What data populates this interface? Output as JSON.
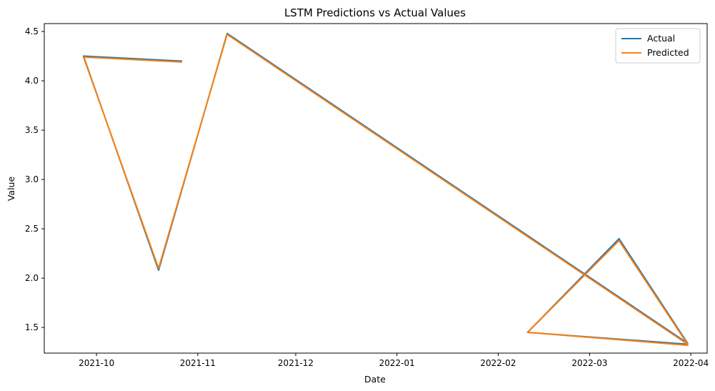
{
  "chart_data": {
    "type": "line",
    "title": "LSTM Predictions vs Actual Values",
    "xlabel": "Date",
    "ylabel": "Value",
    "x_type": "date",
    "xlim": [
      "2021-09-15",
      "2022-04-06"
    ],
    "ylim": [
      1.24,
      4.58
    ],
    "x_ticks": [
      {
        "value": "2021-10-01",
        "label": "2021-10"
      },
      {
        "value": "2021-11-01",
        "label": "2021-11"
      },
      {
        "value": "2021-12-01",
        "label": "2021-12"
      },
      {
        "value": "2022-01-01",
        "label": "2022-01"
      },
      {
        "value": "2022-02-01",
        "label": "2022-02"
      },
      {
        "value": "2022-03-01",
        "label": "2022-03"
      },
      {
        "value": "2022-04-01",
        "label": "2022-04"
      }
    ],
    "y_ticks": [
      {
        "value": 1.5,
        "label": "1.5"
      },
      {
        "value": 2.0,
        "label": "2.0"
      },
      {
        "value": 2.5,
        "label": "2.5"
      },
      {
        "value": 3.0,
        "label": "3.0"
      },
      {
        "value": 3.5,
        "label": "3.5"
      },
      {
        "value": 4.0,
        "label": "4.0"
      },
      {
        "value": 4.5,
        "label": "4.5"
      }
    ],
    "grid": false,
    "legend": "top-right",
    "series": [
      {
        "name": "Actual",
        "color": "#1f77b4",
        "points": [
          {
            "x": "2021-10-27",
            "y": 4.2
          },
          {
            "x": "2021-09-27",
            "y": 4.25
          },
          {
            "x": "2021-10-20",
            "y": 2.08
          },
          {
            "x": "2021-11-10",
            "y": 4.48
          },
          {
            "x": "2022-03-31",
            "y": 1.34
          },
          {
            "x": "2022-03-10",
            "y": 2.4
          },
          {
            "x": "2022-02-10",
            "y": 1.45
          },
          {
            "x": "2022-03-31",
            "y": 1.33
          }
        ]
      },
      {
        "name": "Predicted",
        "color": "#ff7f0e",
        "points": [
          {
            "x": "2021-10-27",
            "y": 4.19
          },
          {
            "x": "2021-09-27",
            "y": 4.24
          },
          {
            "x": "2021-10-20",
            "y": 2.1
          },
          {
            "x": "2021-11-10",
            "y": 4.47
          },
          {
            "x": "2022-03-31",
            "y": 1.33
          },
          {
            "x": "2022-03-10",
            "y": 2.38
          },
          {
            "x": "2022-02-10",
            "y": 1.45
          },
          {
            "x": "2022-03-31",
            "y": 1.32
          }
        ]
      }
    ]
  }
}
